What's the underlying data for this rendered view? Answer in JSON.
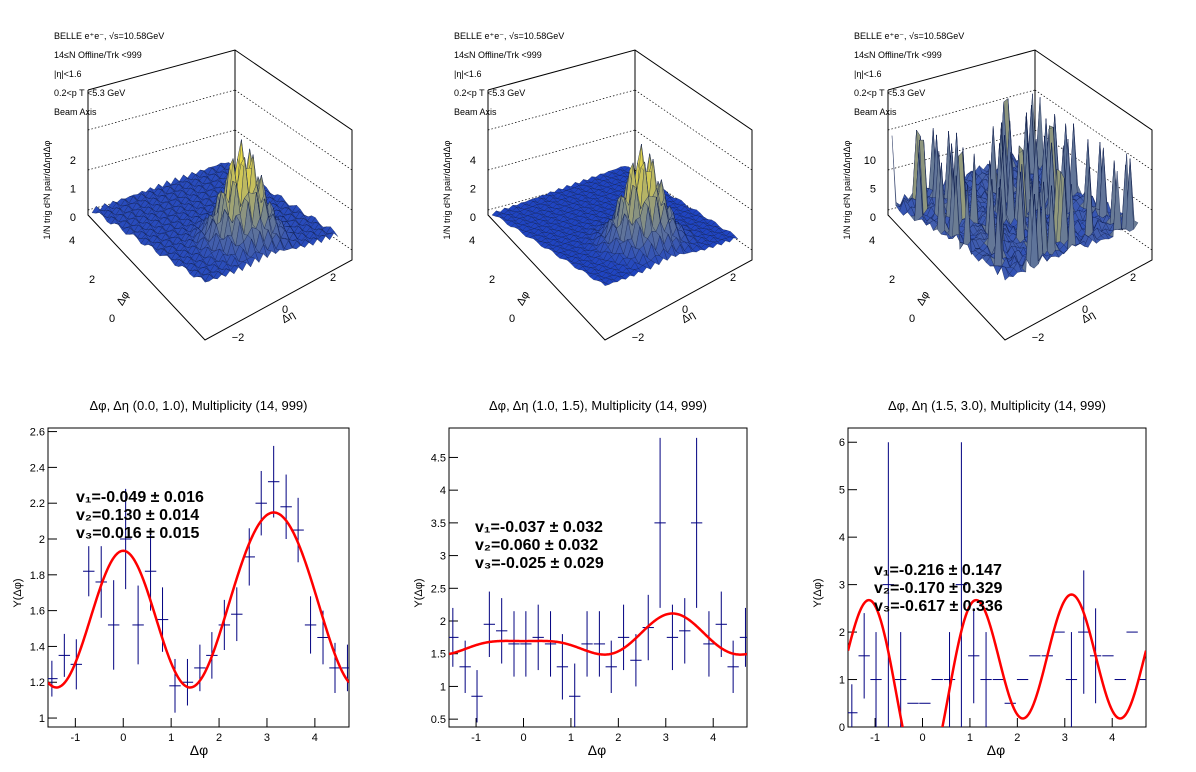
{
  "surface_panels": [
    {
      "info": [
        "BELLE e⁺e⁻, √s=10.58GeV",
        "14≤N Offline/Trk <999",
        "|η|<1.6",
        "0.2<p T <5.3 GeV",
        "Beam Axis"
      ],
      "z_label": "1/N trig d²N pair/dΔηdΔφ",
      "z_ticks": [
        "0",
        "1",
        "2"
      ],
      "phi_label": "Δφ",
      "phi_ticks": [
        "0",
        "2",
        "4"
      ],
      "eta_label": "Δη",
      "eta_ticks": [
        "−2",
        "0",
        "2"
      ]
    },
    {
      "info": [
        "BELLE e⁺e⁻, √s=10.58GeV",
        "14≤N Offline/Trk <999",
        "|η|<1.6",
        "0.2<p T <5.3 GeV",
        "Beam Axis"
      ],
      "z_label": "1/N trig d²N pair/dΔηdΔφ",
      "z_ticks": [
        "0",
        "2",
        "4"
      ],
      "phi_label": "Δφ",
      "phi_ticks": [
        "0",
        "2",
        "4"
      ],
      "eta_label": "Δη",
      "eta_ticks": [
        "−2",
        "0",
        "2"
      ]
    },
    {
      "info": [
        "BELLE e⁺e⁻, √s=10.58GeV",
        "14≤N Offline/Trk <999",
        "|η|<1.6",
        "0.2<p T <5.3 GeV",
        "Beam Axis"
      ],
      "z_label": "1/N trig d²N pair/dΔηdΔφ",
      "z_ticks": [
        "0",
        "5",
        "10"
      ],
      "phi_label": "Δφ",
      "phi_ticks": [
        "0",
        "2",
        "4"
      ],
      "eta_label": "Δη",
      "eta_ticks": [
        "−2",
        "0",
        "2"
      ]
    }
  ],
  "chart_data": [
    {
      "type": "scatter",
      "title": "Δφ, Δη (0.0, 1.0), Multiplicity (14, 999)",
      "xlabel": "Δφ",
      "ylabel": "Y(Δφ)",
      "xlim": [
        -1.5708,
        4.7124
      ],
      "ylim": [
        0.95,
        2.62
      ],
      "xticks": [
        -1,
        0,
        1,
        2,
        3,
        4
      ],
      "yticks": [
        1,
        1.2,
        1.4,
        1.6,
        1.8,
        2,
        2.2,
        2.4,
        2.6
      ],
      "points": [
        {
          "x": -1.49,
          "y": 1.22,
          "err": 0.1
        },
        {
          "x": -1.23,
          "y": 1.35,
          "err": 0.12
        },
        {
          "x": -0.98,
          "y": 1.3,
          "err": 0.14
        },
        {
          "x": -0.72,
          "y": 1.82,
          "err": 0.14
        },
        {
          "x": -0.46,
          "y": 1.76,
          "err": 0.2
        },
        {
          "x": -0.2,
          "y": 1.52,
          "err": 0.25
        },
        {
          "x": 0.05,
          "y": 2.0,
          "err": 0.28
        },
        {
          "x": 0.31,
          "y": 1.52,
          "err": 0.22
        },
        {
          "x": 0.57,
          "y": 1.82,
          "err": 0.22
        },
        {
          "x": 0.82,
          "y": 1.55,
          "err": 0.18
        },
        {
          "x": 1.08,
          "y": 1.18,
          "err": 0.15
        },
        {
          "x": 1.34,
          "y": 1.2,
          "err": 0.13
        },
        {
          "x": 1.6,
          "y": 1.28,
          "err": 0.13
        },
        {
          "x": 1.85,
          "y": 1.35,
          "err": 0.13
        },
        {
          "x": 2.11,
          "y": 1.52,
          "err": 0.14
        },
        {
          "x": 2.37,
          "y": 1.58,
          "err": 0.15
        },
        {
          "x": 2.63,
          "y": 1.9,
          "err": 0.16
        },
        {
          "x": 2.88,
          "y": 2.2,
          "err": 0.18
        },
        {
          "x": 3.14,
          "y": 2.32,
          "err": 0.2
        },
        {
          "x": 3.4,
          "y": 2.18,
          "err": 0.18
        },
        {
          "x": 3.65,
          "y": 2.05,
          "err": 0.18
        },
        {
          "x": 3.91,
          "y": 1.52,
          "err": 0.16
        },
        {
          "x": 4.17,
          "y": 1.45,
          "err": 0.15
        },
        {
          "x": 4.42,
          "y": 1.28,
          "err": 0.14
        },
        {
          "x": 4.68,
          "y": 1.28,
          "err": 0.13
        }
      ],
      "fit": {
        "a0": 1.62,
        "v": [
          -0.049,
          0.13,
          0.016
        ]
      },
      "fit_text": [
        "v₁=-0.049 ± 0.016",
        "v₂=0.130 ± 0.014",
        "v₃=0.016 ± 0.015"
      ],
      "colors": {
        "points": "#000080",
        "fit": "#ff0000"
      }
    },
    {
      "type": "scatter",
      "title": "Δφ, Δη (1.0, 1.5), Multiplicity (14, 999)",
      "xlabel": "Δφ",
      "ylabel": "Y(Δφ)",
      "xlim": [
        -1.5708,
        4.7124
      ],
      "ylim": [
        0.38,
        4.95
      ],
      "xticks": [
        -1,
        0,
        1,
        2,
        3,
        4
      ],
      "yticks": [
        0.5,
        1,
        1.5,
        2,
        2.5,
        3,
        3.5,
        4,
        4.5
      ],
      "points": [
        {
          "x": -1.49,
          "y": 1.75,
          "err": 0.45
        },
        {
          "x": -1.23,
          "y": 1.3,
          "err": 0.4
        },
        {
          "x": -0.98,
          "y": 0.85,
          "err": 0.4
        },
        {
          "x": -0.72,
          "y": 1.95,
          "err": 0.5
        },
        {
          "x": -0.46,
          "y": 1.85,
          "err": 0.5
        },
        {
          "x": -0.2,
          "y": 1.65,
          "err": 0.5
        },
        {
          "x": 0.05,
          "y": 1.65,
          "err": 0.5
        },
        {
          "x": 0.31,
          "y": 1.75,
          "err": 0.5
        },
        {
          "x": 0.57,
          "y": 1.65,
          "err": 0.5
        },
        {
          "x": 0.82,
          "y": 1.3,
          "err": 0.5
        },
        {
          "x": 1.08,
          "y": 0.85,
          "err": 0.5
        },
        {
          "x": 1.34,
          "y": 1.65,
          "err": 0.5
        },
        {
          "x": 1.6,
          "y": 1.65,
          "err": 0.5
        },
        {
          "x": 1.85,
          "y": 1.3,
          "err": 0.4
        },
        {
          "x": 2.11,
          "y": 1.75,
          "err": 0.5
        },
        {
          "x": 2.37,
          "y": 1.4,
          "err": 0.4
        },
        {
          "x": 2.63,
          "y": 1.9,
          "err": 0.5
        },
        {
          "x": 2.88,
          "y": 3.5,
          "err": 1.3
        },
        {
          "x": 3.14,
          "y": 1.75,
          "err": 0.5
        },
        {
          "x": 3.4,
          "y": 1.85,
          "err": 0.5
        },
        {
          "x": 3.65,
          "y": 3.5,
          "err": 1.3
        },
        {
          "x": 3.91,
          "y": 1.65,
          "err": 0.5
        },
        {
          "x": 4.17,
          "y": 1.95,
          "err": 0.5
        },
        {
          "x": 4.42,
          "y": 1.3,
          "err": 0.4
        },
        {
          "x": 4.68,
          "y": 1.75,
          "err": 0.45
        }
      ],
      "fit": {
        "a0": 1.7,
        "v": [
          -0.037,
          0.06,
          -0.025
        ]
      },
      "fit_text": [
        "v₁=-0.037 ± 0.032",
        "v₂=0.060 ± 0.032",
        "v₃=-0.025 ± 0.029"
      ],
      "colors": {
        "points": "#000080",
        "fit": "#ff0000"
      }
    },
    {
      "type": "scatter",
      "title": "Δφ, Δη (1.5, 3.0), Multiplicity (14, 999)",
      "xlabel": "Δφ",
      "ylabel": "Y(Δφ)",
      "xlim": [
        -1.5708,
        4.7124
      ],
      "ylim": [
        0.0,
        6.3
      ],
      "xticks": [
        -1,
        0,
        1,
        2,
        3,
        4
      ],
      "yticks": [
        0,
        1,
        2,
        3,
        4,
        5,
        6
      ],
      "points": [
        {
          "x": -1.49,
          "y": 0.3,
          "err": 0.6
        },
        {
          "x": -1.23,
          "y": 1.5,
          "err": 0.9
        },
        {
          "x": -0.98,
          "y": 1.0,
          "err": 1.0
        },
        {
          "x": -0.72,
          "y": 3.0,
          "err": 3.0
        },
        {
          "x": -0.46,
          "y": 1.0,
          "err": 1.0
        },
        {
          "x": -0.2,
          "y": 0.5,
          "err": 0.0
        },
        {
          "x": 0.05,
          "y": 0.5,
          "err": 0.0
        },
        {
          "x": 0.31,
          "y": 1.0,
          "err": 0.0
        },
        {
          "x": 0.57,
          "y": 1.0,
          "err": 1.0
        },
        {
          "x": 0.82,
          "y": 3.0,
          "err": 3.0
        },
        {
          "x": 1.08,
          "y": 1.5,
          "err": 1.0
        },
        {
          "x": 1.34,
          "y": 1.0,
          "err": 1.0
        },
        {
          "x": 1.6,
          "y": 1.0,
          "err": 0.0
        },
        {
          "x": 1.85,
          "y": 0.5,
          "err": 0.0
        },
        {
          "x": 2.11,
          "y": 1.0,
          "err": 0.0
        },
        {
          "x": 2.37,
          "y": 1.5,
          "err": 0.0
        },
        {
          "x": 2.63,
          "y": 1.5,
          "err": 0.0
        },
        {
          "x": 2.88,
          "y": 2.0,
          "err": 0.0
        },
        {
          "x": 3.14,
          "y": 1.0,
          "err": 1.0
        },
        {
          "x": 3.4,
          "y": 2.0,
          "err": 1.3
        },
        {
          "x": 3.65,
          "y": 1.5,
          "err": 1.0
        },
        {
          "x": 3.91,
          "y": 1.5,
          "err": 0.0
        },
        {
          "x": 4.17,
          "y": 1.0,
          "err": 0.0
        },
        {
          "x": 4.42,
          "y": 2.0,
          "err": 0.0
        },
        {
          "x": 4.68,
          "y": 1.0,
          "err": 0.0
        }
      ],
      "fit": {
        "a0": 1.2,
        "v": [
          -0.216,
          -0.17,
          -0.617
        ]
      },
      "fit_text": [
        "v₁=-0.216 ± 0.147",
        "v₂=-0.170 ± 0.329",
        "v₃=-0.617 ± 0.336"
      ],
      "colors": {
        "points": "#000080",
        "fit": "#ff0000"
      }
    }
  ]
}
